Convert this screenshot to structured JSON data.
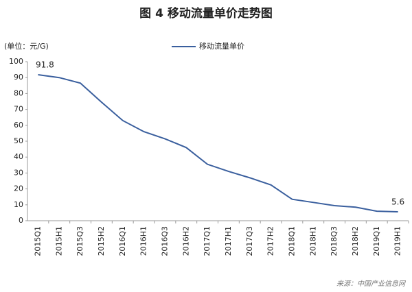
{
  "chart_data": {
    "type": "line",
    "title": "图 4  移动流量单价走势图",
    "unit_label": "(单位：元/G)",
    "categories": [
      "2015Q1",
      "2015H1",
      "2015Q3",
      "2015H2",
      "2016Q1",
      "2016H1",
      "2016Q3",
      "2016H2",
      "2017Q1",
      "2017H1",
      "2017Q3",
      "2017H2",
      "2018Q1",
      "2018H1",
      "2018Q3",
      "2018H2",
      "2019Q1",
      "2019H1"
    ],
    "series": [
      {
        "name": "移动流量单价",
        "color": "#3a5f9e",
        "values": [
          91.8,
          90,
          86.5,
          74.5,
          63,
          56,
          51.5,
          46,
          35.5,
          31,
          27,
          22.5,
          13.5,
          11.5,
          9.5,
          8.5,
          6,
          5.6
        ]
      }
    ],
    "labeled_points": [
      0,
      17
    ],
    "ylim": [
      0,
      100
    ],
    "yticks": [
      0,
      10,
      20,
      30,
      40,
      50,
      60,
      70,
      80,
      90,
      100
    ],
    "grid": false,
    "legend": "top",
    "source": "来源：中国产业信息网"
  }
}
